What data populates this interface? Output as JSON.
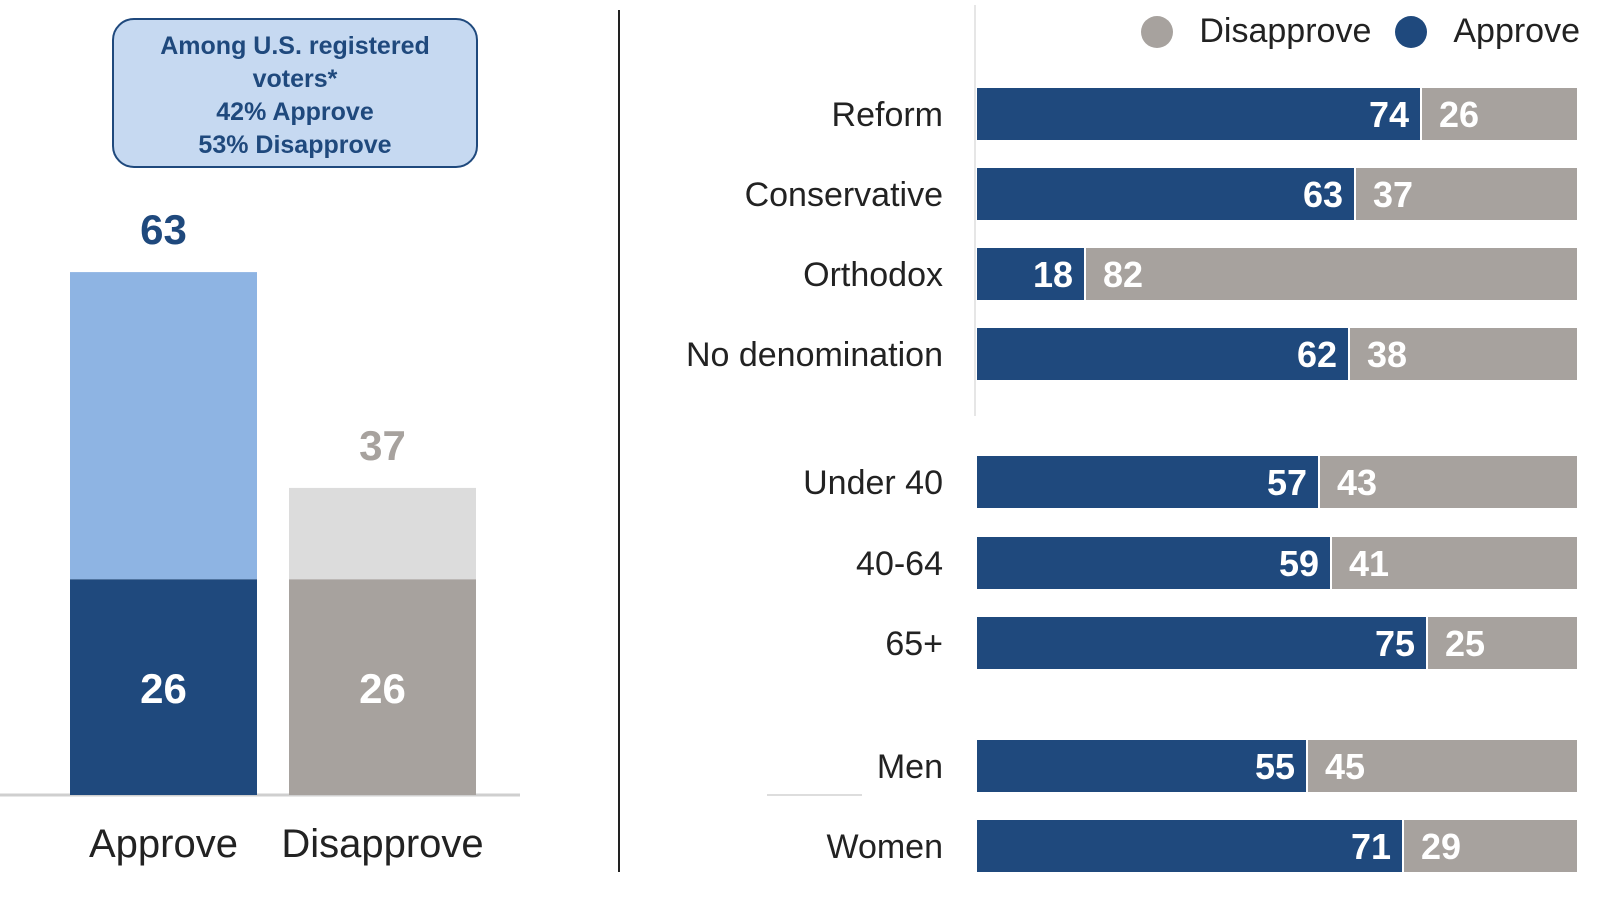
{
  "colors": {
    "approve_dark": "#1f497d",
    "approve_light": "#8eb4e3",
    "disapprove_dark": "#a7a29e",
    "disapprove_light": "#dcdcdc",
    "callout_bg": "#c6d9f1"
  },
  "callout": {
    "line1": "Among U.S. registered",
    "line2": "voters*",
    "line3": "42% Approve",
    "line4": "53% Disapprove"
  },
  "legend": {
    "disapprove": "Disapprove",
    "approve": "Approve"
  },
  "chart_data": [
    {
      "type": "bar",
      "stacked": true,
      "categories": [
        "Approve",
        "Disapprove"
      ],
      "series": [
        {
          "values": [
            26,
            26
          ]
        },
        {
          "values": [
            37,
            11
          ]
        }
      ],
      "totals": [
        63,
        37
      ],
      "segment_labels": [
        26,
        26
      ],
      "title": "",
      "xlabel": "",
      "ylabel": "",
      "ylim": [
        0,
        75
      ],
      "grid": false
    },
    {
      "type": "bar",
      "orientation": "horizontal",
      "stacked": true,
      "categories": [
        "Reform",
        "Conservative",
        "Orthodox",
        "No denomination",
        "Under 40",
        "40-64",
        "65+",
        "Men",
        "Women"
      ],
      "series": [
        {
          "name": "Approve",
          "values": [
            74,
            63,
            18,
            62,
            57,
            59,
            75,
            55,
            71
          ]
        },
        {
          "name": "Disapprove",
          "values": [
            26,
            37,
            82,
            38,
            43,
            41,
            25,
            45,
            29
          ]
        }
      ],
      "title": "",
      "xlabel": "",
      "ylabel": "",
      "xlim": [
        0,
        100
      ],
      "grid": false,
      "legend": "top-right"
    }
  ]
}
